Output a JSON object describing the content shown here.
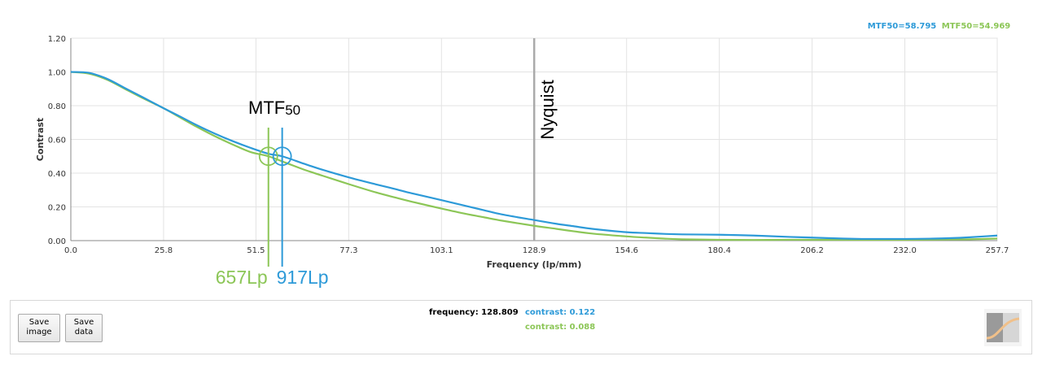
{
  "chart_data": {
    "type": "line",
    "xlabel": "Frequency (lp/mm)",
    "ylabel": "Contrast",
    "xlim": [
      0,
      257.7
    ],
    "ylim": [
      0,
      1.2
    ],
    "x_ticks": [
      "0.0",
      "25.8",
      "51.5",
      "77.3",
      "103.1",
      "128.9",
      "154.6",
      "180.4",
      "206.2",
      "232.0",
      "257.7"
    ],
    "y_ticks": [
      "0.00",
      "0.20",
      "0.40",
      "0.60",
      "0.80",
      "1.00",
      "1.20"
    ],
    "grid": true,
    "legend_position": "top-right",
    "series": [
      {
        "name": "MTF50=58.795",
        "color": "#2d9ad8",
        "x": [
          0,
          5,
          10,
          15,
          20,
          25.8,
          30,
          35,
          40,
          45,
          50,
          55,
          58.795,
          65,
          70,
          77.3,
          85,
          90,
          95,
          103.1,
          110,
          115,
          120,
          128.9,
          135,
          140,
          145,
          154.6,
          160,
          165,
          170,
          180.4,
          190,
          200,
          206.2,
          215,
          220,
          225,
          232.0,
          240,
          245,
          250,
          257.7
        ],
        "y": [
          1.0,
          0.995,
          0.96,
          0.905,
          0.85,
          0.785,
          0.74,
          0.685,
          0.635,
          0.59,
          0.55,
          0.515,
          0.5,
          0.455,
          0.42,
          0.375,
          0.333,
          0.307,
          0.28,
          0.24,
          0.205,
          0.18,
          0.155,
          0.122,
          0.1,
          0.085,
          0.07,
          0.05,
          0.045,
          0.04,
          0.037,
          0.035,
          0.03,
          0.022,
          0.018,
          0.012,
          0.01,
          0.01,
          0.01,
          0.012,
          0.015,
          0.02,
          0.03
        ]
      },
      {
        "name": "MTF50=54.969",
        "color": "#8cc657",
        "x": [
          0,
          5,
          10,
          15,
          20,
          25.8,
          30,
          35,
          40,
          45,
          50,
          54.969,
          60,
          65,
          70,
          77.3,
          85,
          90,
          95,
          103.1,
          110,
          115,
          120,
          128.9,
          135,
          140,
          145,
          154.6,
          160,
          165,
          170,
          180.4,
          190,
          200,
          206.2,
          215,
          220,
          225,
          232.0,
          240,
          245,
          250,
          257.7
        ],
        "y": [
          1.0,
          0.99,
          0.955,
          0.9,
          0.845,
          0.785,
          0.735,
          0.675,
          0.62,
          0.57,
          0.525,
          0.5,
          0.46,
          0.42,
          0.385,
          0.335,
          0.285,
          0.257,
          0.23,
          0.19,
          0.158,
          0.138,
          0.118,
          0.088,
          0.07,
          0.055,
          0.042,
          0.025,
          0.018,
          0.012,
          0.008,
          0.005,
          0.004,
          0.005,
          0.005,
          0.005,
          0.005,
          0.005,
          0.005,
          0.006,
          0.007,
          0.008,
          0.012
        ]
      }
    ],
    "nyquist": {
      "x": 128.9,
      "label": "Nyquist",
      "color": "#aaaaaa"
    },
    "mtf50": {
      "title_main": "MTF",
      "title_sub": "50",
      "level": 0.5,
      "markers": [
        {
          "x": 54.969,
          "label": "657Lp",
          "color": "#8cc657"
        },
        {
          "x": 58.795,
          "label": "917Lp",
          "color": "#2d9ad8"
        }
      ]
    }
  },
  "buttons": {
    "save_image": "Save image",
    "save_data": "Save data"
  },
  "readout": {
    "frequency_label": "frequency: 128.809",
    "contrast_blue": "contrast: 0.122",
    "contrast_green": "contrast: 0.088",
    "blue_color": "#2d9ad8",
    "green_color": "#8cc657"
  },
  "thumbnail_icon": "mtf-curve-thumbnail-icon"
}
